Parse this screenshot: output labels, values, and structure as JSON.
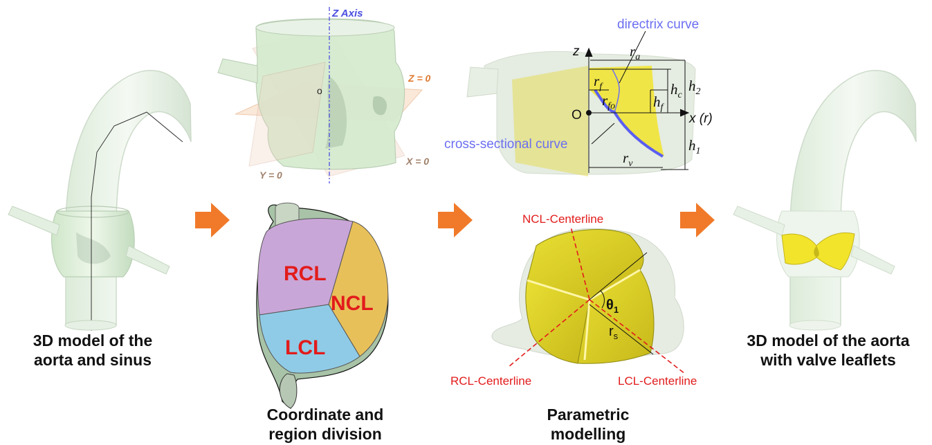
{
  "panels": {
    "aorta_sinus": {
      "caption_line1": "3D model of the",
      "caption_line2": "aorta and sinus"
    },
    "coordinate": {
      "z_axis_label": "Z Axis",
      "origin_label": "o",
      "z_plane_label": "Z = 0",
      "x_plane_label": "X = 0",
      "y_plane_label": "Y = 0",
      "caption_line1": "Coordinate and",
      "caption_line2": "region division"
    },
    "regions": {
      "rcl": "RCL",
      "ncl": "NCL",
      "lcl": "LCL"
    },
    "parametric": {
      "directrix_curve": "directrix curve",
      "cross_sectional_curve": "cross-sectional curve",
      "z_label": "z",
      "origin_label": "O",
      "x_axis_label": "x (r)",
      "ra": "a",
      "rf": "f",
      "rfo": "fo",
      "rv": "v",
      "hf": "f",
      "hc": "c",
      "h2": "2",
      "h1": "1",
      "ncl_centerline": "NCL-Centerline",
      "rcl_centerline": "RCL-Centerline",
      "lcl_centerline": "LCL-Centerline",
      "theta_sub": "1",
      "rs_sub": "s",
      "caption_line1": "Parametric",
      "caption_line2": "modelling"
    },
    "result": {
      "caption_line1": "3D model of the aorta",
      "caption_line2": "with valve leaflets"
    }
  },
  "colors": {
    "arrow": "#f07a2a",
    "rcl_region": "#c9a6d8",
    "ncl_region": "#e8c05a",
    "lcl_region": "#8fcbe6",
    "region_label": "#e21b1b",
    "curve_blue": "#6b6ff0",
    "leaflet_yellow": "#f2e42a",
    "centerline_red": "#e21b1b"
  }
}
